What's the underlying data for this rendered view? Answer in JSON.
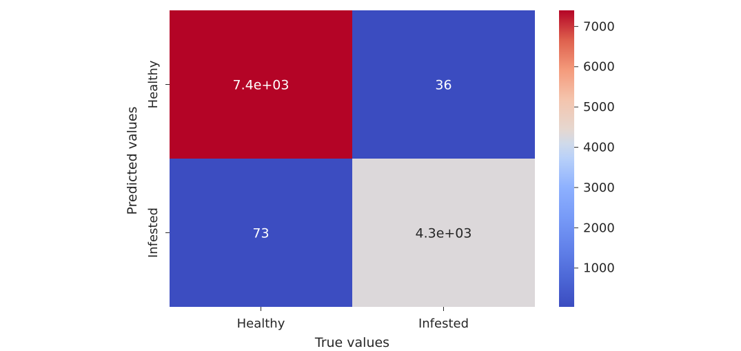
{
  "chart_data": {
    "type": "heatmap",
    "title": "",
    "xlabel": "True values",
    "ylabel": "Predicted values",
    "x_categories": [
      "Healthy",
      "Infested"
    ],
    "y_categories": [
      "Healthy",
      "Infested"
    ],
    "values": [
      [
        7400,
        36
      ],
      [
        73,
        4300
      ]
    ],
    "annotations": [
      [
        "7.4e+03",
        "36"
      ],
      [
        "73",
        "4.3e+03"
      ]
    ],
    "colormap": "coolwarm",
    "colorbar": {
      "range": [
        36,
        7400
      ],
      "ticks": [
        1000,
        2000,
        3000,
        4000,
        5000,
        6000,
        7000
      ],
      "tick_labels": [
        "1000",
        "2000",
        "3000",
        "4000",
        "5000",
        "6000",
        "7000"
      ]
    }
  }
}
